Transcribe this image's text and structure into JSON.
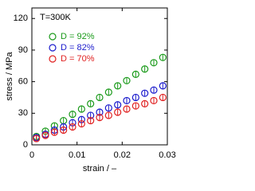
{
  "chart_data": {
    "type": "scatter",
    "annotation": "T=300K",
    "x_label": "strain / –",
    "y_label": "stress / MPa",
    "x": [
      0.001,
      0.003,
      0.005,
      0.007,
      0.009,
      0.011,
      0.013,
      0.015,
      0.017,
      0.019,
      0.021,
      0.023,
      0.025,
      0.027,
      0.029
    ],
    "series": [
      {
        "name": "D = 92%",
        "color": "#1a9a1a",
        "values": [
          8,
          13,
          18,
          23,
          29,
          34,
          39,
          45,
          50,
          56,
          61,
          67,
          72,
          78,
          83
        ],
        "errors": [
          3,
          3,
          3,
          3,
          3,
          3,
          3,
          3,
          3,
          3,
          3,
          3,
          3,
          3,
          3
        ]
      },
      {
        "name": "D = 82%",
        "color": "#1a1acc",
        "values": [
          7,
          10,
          14,
          17,
          21,
          24,
          28,
          31,
          35,
          38,
          42,
          45,
          49,
          52,
          56
        ],
        "errors": [
          3,
          3,
          3,
          3,
          3,
          3,
          3,
          3,
          3,
          3,
          3,
          3,
          3,
          3,
          3
        ]
      },
      {
        "name": "D = 70%",
        "color": "#e02020",
        "values": [
          6,
          9,
          12,
          14,
          17,
          20,
          23,
          26,
          28,
          31,
          34,
          37,
          39,
          42,
          45
        ],
        "errors": [
          3,
          3,
          3,
          3,
          3,
          3,
          3,
          3,
          3,
          3,
          3,
          3,
          3,
          3,
          3
        ]
      }
    ],
    "xlim": [
      0,
      0.03
    ],
    "xticks": [
      0,
      0.01,
      0.02,
      0.03
    ],
    "ylim": [
      0,
      130
    ],
    "yticks": [
      0,
      30,
      60,
      90,
      120
    ]
  }
}
